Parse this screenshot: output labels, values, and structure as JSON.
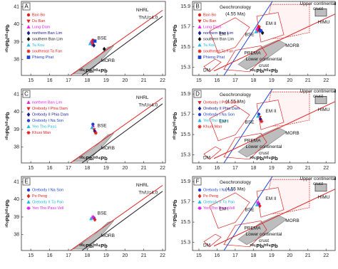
{
  "chart_data": [
    {
      "type": "scatter",
      "panel": "A",
      "xlabel": "²⁰⁶Pb/²⁰⁴Pb",
      "ylabel": "²⁰⁸Pb/²⁰⁴Pb",
      "side": "left",
      "xlim": [
        14.5,
        22.15
      ],
      "ylim": [
        37.1,
        41.3
      ],
      "xticks": [
        15,
        16,
        17,
        18,
        19,
        20,
        21,
        22
      ],
      "yticks": [
        38,
        39,
        40,
        41
      ],
      "legend": "upper left",
      "annotations": [
        "NHRL",
        "Th/U=4.0",
        "BSE",
        "MORB"
      ],
      "series": [
        {
          "name": "Ban Bo",
          "color": "#e02020",
          "marker": "circle",
          "x": [
            18.3
          ],
          "values": [
            39.1
          ]
        },
        {
          "name": "Du Ban",
          "color": "#e02020",
          "marker": "triangle-down",
          "x": [
            18.25
          ],
          "values": [
            38.85
          ]
        },
        {
          "name": "Lung Dam",
          "color": "#e020e0",
          "marker": "triangle",
          "x": [
            18.2
          ],
          "values": [
            39.0
          ]
        },
        {
          "name": "northern Ban Lim",
          "color": "#1a1a8c",
          "marker": "diamond",
          "x": [
            18.35
          ],
          "values": [
            38.8
          ]
        },
        {
          "name": "southern Ban Lim",
          "color": "#111111",
          "marker": "diamond",
          "x": [
            18.9
          ],
          "values": [
            38.6
          ]
        },
        {
          "name": "Ta Kou",
          "color": "#20b8e0",
          "marker": "triangle",
          "x": [
            18.15
          ],
          "values": [
            38.9
          ]
        },
        {
          "name": "southeast Ta Fan",
          "color": "#e02020",
          "marker": "star",
          "x": [
            18.3
          ],
          "values": [
            39.0
          ]
        },
        {
          "name": "Phieng Phat",
          "color": "#2040d0",
          "marker": "square",
          "x": [
            18.4
          ],
          "values": [
            39.05
          ]
        }
      ]
    },
    {
      "type": "scatter",
      "panel": "B",
      "xlabel": "²⁰⁶Pb/²⁰⁴Pb",
      "ylabel": "²⁰⁷Pb/²⁰⁴Pb",
      "side": "right",
      "xlim": [
        14.65,
        22.5
      ],
      "ylim": [
        15.22,
        15.95
      ],
      "xticks": [
        15,
        16,
        17,
        18,
        19,
        20,
        21,
        22
      ],
      "yticks": [
        15.3,
        15.5,
        15.7,
        15.9
      ],
      "legend": "upper left",
      "annotations": [
        "Geochronology",
        "(4.55 Ma)",
        "Upper continental",
        "crust",
        "HIMU",
        "EM II",
        "EM I",
        "BSE",
        "PREMA",
        "Lower continental",
        "crust",
        "DM",
        "MORB"
      ],
      "series": [
        {
          "name": "Ban Bo",
          "color": "#e02020",
          "marker": "circle",
          "x": [
            18.3
          ],
          "values": [
            15.69
          ]
        },
        {
          "name": "Du Ban",
          "color": "#e02020",
          "marker": "triangle-down",
          "x": [
            18.25
          ],
          "values": [
            15.66
          ]
        },
        {
          "name": "Lung Dam",
          "color": "#e020e0",
          "marker": "triangle",
          "x": [
            18.2
          ],
          "values": [
            15.68
          ]
        },
        {
          "name": "northern Ban Lim",
          "color": "#1a1a8c",
          "marker": "diamond",
          "x": [
            18.35
          ],
          "values": [
            15.67
          ]
        },
        {
          "name": "southern Ban Lim",
          "color": "#111111",
          "marker": "diamond",
          "x": [
            18.5
          ],
          "values": [
            15.64
          ]
        },
        {
          "name": "Ta Kou",
          "color": "#20b8e0",
          "marker": "triangle",
          "x": [
            18.15
          ],
          "values": [
            15.65
          ]
        },
        {
          "name": "southeast Ta Fan",
          "color": "#e02020",
          "marker": "star",
          "x": [
            18.3
          ],
          "values": [
            15.7
          ]
        },
        {
          "name": "Phieng Phat",
          "color": "#2040d0",
          "marker": "square",
          "x": [
            18.4
          ],
          "values": [
            15.66
          ]
        }
      ]
    },
    {
      "type": "scatter",
      "panel": "C",
      "xlabel": "²⁰⁶Pb/²⁰⁴Pb",
      "ylabel": "²⁰⁸Pb/²⁰⁴Pb",
      "side": "left",
      "xlim": [
        14.5,
        22.15
      ],
      "ylim": [
        37.1,
        41.3
      ],
      "xticks": [
        15,
        16,
        17,
        18,
        19,
        20,
        21,
        22
      ],
      "yticks": [
        38,
        39,
        40,
        41
      ],
      "legend": "upper left",
      "annotations": [
        "NHRL",
        "Th/U=4.0",
        "BSE",
        "MORB"
      ],
      "series": [
        {
          "name": "northern Ban Lim",
          "color": "#e020e0",
          "marker": "triangle",
          "x": [
            18.3
          ],
          "values": [
            39.2
          ]
        },
        {
          "name": "Orebody I Phia Dam",
          "color": "#e02020",
          "marker": "triangle-down",
          "x": [
            18.35
          ],
          "values": [
            39.0
          ]
        },
        {
          "name": "Orebody II Phia Dam",
          "color": "#1a1a8c",
          "marker": "diamond",
          "x": [
            18.4
          ],
          "values": [
            38.9
          ]
        },
        {
          "name": "Orebody I Na Son",
          "color": "#2040d0",
          "marker": "circle",
          "x": [
            18.3
          ],
          "values": [
            39.3
          ]
        },
        {
          "name": "Yen Tho Pass",
          "color": "#20b8e0",
          "marker": "triangle",
          "x": [
            18.25
          ],
          "values": [
            39.1
          ]
        },
        {
          "name": "Khuoi Man",
          "color": "#e02020",
          "marker": "star",
          "x": [
            18.45
          ],
          "values": [
            38.8
          ]
        }
      ]
    },
    {
      "type": "scatter",
      "panel": "D",
      "xlabel": "²⁰⁶Pb/²⁰⁴Pb",
      "ylabel": "²⁰⁷Pb/²⁰⁴Pb",
      "side": "right",
      "xlim": [
        14.65,
        22.5
      ],
      "ylim": [
        15.22,
        15.95
      ],
      "xticks": [
        15,
        16,
        17,
        18,
        19,
        20,
        21,
        22
      ],
      "yticks": [
        15.3,
        15.5,
        15.7,
        15.9
      ],
      "legend": "upper left",
      "annotations": [
        "Geochronology",
        "(4.55 Ma)",
        "Upper continental",
        "crust",
        "HIMU",
        "EM II",
        "EM I",
        "BSE",
        "PREMA",
        "Lower continental",
        "crust",
        "DM",
        "MORB"
      ],
      "series": [
        {
          "name": "Orebody I Phia Dam",
          "color": "#e02020",
          "marker": "triangle-down",
          "x": [
            18.35
          ],
          "values": [
            15.67
          ]
        },
        {
          "name": "Orebody II Phia Dam",
          "color": "#1a1a8c",
          "marker": "diamond",
          "x": [
            18.4
          ],
          "values": [
            15.65
          ]
        },
        {
          "name": "Orebody I Na Son",
          "color": "#2040d0",
          "marker": "circle",
          "x": [
            18.3
          ],
          "values": [
            15.7
          ]
        },
        {
          "name": "Yen Tho Pass",
          "color": "#20b8e0",
          "marker": "triangle",
          "x": [
            18.25
          ],
          "values": [
            15.68
          ]
        },
        {
          "name": "Khuoi Man",
          "color": "#e02020",
          "marker": "star",
          "x": [
            18.45
          ],
          "values": [
            15.63
          ]
        }
      ]
    },
    {
      "type": "scatter",
      "panel": "E",
      "xlabel": "²⁰⁶Pb/²⁰⁴Pb",
      "ylabel": "²⁰⁸Pb/²⁰⁴Pb",
      "side": "left",
      "xlim": [
        14.5,
        22.15
      ],
      "ylim": [
        37.1,
        41.3
      ],
      "xticks": [
        15,
        16,
        17,
        18,
        19,
        20,
        21,
        22
      ],
      "yticks": [
        38,
        39,
        40,
        41
      ],
      "legend": "upper left",
      "annotations": [
        "NHRL",
        "Th/U=4.0",
        "BSE",
        "MORB"
      ],
      "series": [
        {
          "name": "Orebody I Na Son",
          "color": "#2040d0",
          "marker": "circle",
          "x": [
            18.35
          ],
          "values": [
            38.95
          ]
        },
        {
          "name": "Po Peng",
          "color": "#e02020",
          "marker": "diamond",
          "x": [
            18.4
          ],
          "values": [
            38.85
          ]
        },
        {
          "name": "Orebody II Ta Pan",
          "color": "#20b8e0",
          "marker": "triangle",
          "x": [
            18.2
          ],
          "values": [
            38.9
          ]
        },
        {
          "name": "Yen Tho Pass Vell",
          "color": "#e020e0",
          "marker": "star",
          "x": [
            18.3
          ],
          "values": [
            39.0
          ]
        }
      ]
    },
    {
      "type": "scatter",
      "panel": "F",
      "xlabel": "²⁰⁶Pb/²⁰⁴Pb",
      "ylabel": "²⁰⁷Pb/²⁰⁴Pb",
      "side": "right",
      "xlim": [
        14.65,
        22.5
      ],
      "ylim": [
        15.22,
        15.95
      ],
      "xticks": [
        15,
        16,
        17,
        18,
        19,
        20,
        21,
        22
      ],
      "yticks": [
        15.3,
        15.5,
        15.7,
        15.9
      ],
      "legend": "upper left",
      "annotations": [
        "Geochronology",
        "(4.55 Ma)",
        "Upper continental",
        "crust",
        "HIMU",
        "EM II",
        "EM I",
        "BSE",
        "PREMA",
        "Lower continental",
        "crust",
        "DM",
        "MORB"
      ],
      "series": [
        {
          "name": "Orebody I Na Son",
          "color": "#2040d0",
          "marker": "circle",
          "x": [
            18.3
          ],
          "values": [
            15.68
          ]
        },
        {
          "name": "Po Peng",
          "color": "#e02020",
          "marker": "diamond",
          "x": [
            18.35
          ],
          "values": [
            15.66
          ]
        },
        {
          "name": "Orebody II Ta Pan",
          "color": "#20b8e0",
          "marker": "triangle",
          "x": [
            18.2
          ],
          "values": [
            15.67
          ]
        },
        {
          "name": "Yen Tho Pass Vell",
          "color": "#e020e0",
          "marker": "star",
          "x": [
            18.25
          ],
          "values": [
            15.69
          ]
        }
      ]
    }
  ]
}
